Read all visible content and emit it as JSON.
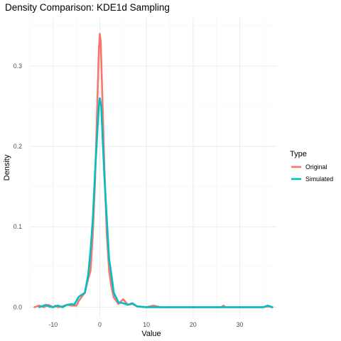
{
  "chart_data": {
    "type": "line",
    "title": "Density Comparison: KDE1d Sampling",
    "xlabel": "Value",
    "ylabel": "Density",
    "xlim": [
      -15,
      38
    ],
    "ylim": [
      -0.012,
      0.36
    ],
    "x_ticks": [
      -10,
      0,
      10,
      20,
      30
    ],
    "y_ticks": [
      0.0,
      0.1,
      0.2,
      0.3
    ],
    "x_tick_labels": [
      "-10",
      "0",
      "10",
      "20",
      "30"
    ],
    "y_tick_labels": [
      "0.0",
      "0.1",
      "0.2",
      "0.3"
    ],
    "grid": true,
    "legend": {
      "title": "Type",
      "position": "right"
    },
    "series": [
      {
        "name": "Original",
        "color": "#F8766D",
        "points": [
          [
            -14,
            0.0
          ],
          [
            -13,
            0.002
          ],
          [
            -12,
            0.0
          ],
          [
            -11,
            0.003
          ],
          [
            -10,
            0.0
          ],
          [
            -9.5,
            0.002
          ],
          [
            -9,
            0.0
          ],
          [
            -8,
            0.001
          ],
          [
            -7,
            0.003
          ],
          [
            -6,
            0.002
          ],
          [
            -5,
            0.002
          ],
          [
            -4.5,
            0.008
          ],
          [
            -4,
            0.012
          ],
          [
            -3.2,
            0.018
          ],
          [
            -2.5,
            0.035
          ],
          [
            -2,
            0.045
          ],
          [
            -1.5,
            0.09
          ],
          [
            -1,
            0.16
          ],
          [
            -0.5,
            0.26
          ],
          [
            -0.2,
            0.32
          ],
          [
            0,
            0.34
          ],
          [
            0.2,
            0.33
          ],
          [
            0.5,
            0.27
          ],
          [
            1,
            0.17
          ],
          [
            1.5,
            0.09
          ],
          [
            2,
            0.045
          ],
          [
            2.5,
            0.025
          ],
          [
            3,
            0.012
          ],
          [
            4,
            0.004
          ],
          [
            5,
            0.01
          ],
          [
            6,
            0.003
          ],
          [
            7,
            0.004
          ],
          [
            8,
            0.001
          ],
          [
            10,
            0.0
          ],
          [
            11.5,
            0.002
          ],
          [
            13,
            0.0
          ],
          [
            20,
            0.0
          ],
          [
            26,
            0.0
          ],
          [
            26.5,
            0.002
          ],
          [
            27,
            0.0
          ],
          [
            35,
            0.0
          ],
          [
            36,
            0.001
          ],
          [
            37,
            0.0
          ]
        ]
      },
      {
        "name": "Simulated",
        "color": "#00BFC4",
        "points": [
          [
            -13,
            0.0
          ],
          [
            -12,
            0.002
          ],
          [
            -11.5,
            0.003
          ],
          [
            -11,
            0.001
          ],
          [
            -10,
            0.0
          ],
          [
            -9,
            0.002
          ],
          [
            -8,
            0.0
          ],
          [
            -7,
            0.003
          ],
          [
            -6,
            0.004
          ],
          [
            -5.5,
            0.003
          ],
          [
            -4.5,
            0.013
          ],
          [
            -4,
            0.015
          ],
          [
            -3.2,
            0.018
          ],
          [
            -2.5,
            0.04
          ],
          [
            -2,
            0.07
          ],
          [
            -1.5,
            0.11
          ],
          [
            -1,
            0.17
          ],
          [
            -0.5,
            0.22
          ],
          [
            -0.2,
            0.25
          ],
          [
            0,
            0.26
          ],
          [
            0.3,
            0.25
          ],
          [
            0.6,
            0.21
          ],
          [
            1,
            0.16
          ],
          [
            1.5,
            0.11
          ],
          [
            2,
            0.06
          ],
          [
            2.5,
            0.04
          ],
          [
            3,
            0.018
          ],
          [
            4,
            0.006
          ],
          [
            5,
            0.005
          ],
          [
            6,
            0.003
          ],
          [
            7,
            0.005
          ],
          [
            8,
            0.001
          ],
          [
            10,
            0.0
          ],
          [
            20,
            0.0
          ],
          [
            30,
            0.0
          ],
          [
            35,
            0.0
          ],
          [
            36,
            0.002
          ],
          [
            37,
            0.0
          ]
        ]
      }
    ]
  }
}
